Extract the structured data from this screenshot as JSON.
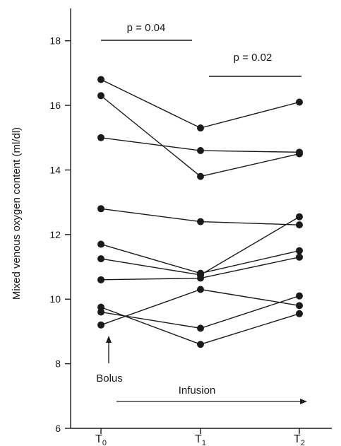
{
  "chart_data": {
    "type": "line",
    "ylabel": "Mixed venous oxygen content (ml/dl)",
    "xlabel": "",
    "ylim": [
      6,
      19
    ],
    "yticks": [
      6,
      8,
      10,
      12,
      14,
      16,
      18
    ],
    "categories": [
      {
        "main": "T",
        "sub": "0"
      },
      {
        "main": "T",
        "sub": "1"
      },
      {
        "main": "T",
        "sub": "2"
      }
    ],
    "series": [
      {
        "values": [
          16.8,
          15.3,
          16.1
        ]
      },
      {
        "values": [
          16.3,
          13.8,
          14.5
        ]
      },
      {
        "values": [
          15.0,
          14.6,
          14.55
        ]
      },
      {
        "values": [
          12.8,
          12.4,
          12.3
        ]
      },
      {
        "values": [
          11.7,
          10.8,
          11.5
        ]
      },
      {
        "values": [
          11.25,
          10.75,
          12.55
        ]
      },
      {
        "values": [
          10.6,
          10.65,
          11.3
        ]
      },
      {
        "values": [
          9.75,
          8.6,
          9.55
        ]
      },
      {
        "values": [
          9.6,
          9.1,
          10.1
        ]
      },
      {
        "values": [
          9.2,
          10.3,
          9.8
        ]
      }
    ],
    "grid": false,
    "legend": "none",
    "color": "#1a1a1a",
    "annotations": {
      "p1": "p = 0.04",
      "p2": "p = 0.02",
      "bolus": "Bolus",
      "infusion": "Infusion"
    }
  }
}
